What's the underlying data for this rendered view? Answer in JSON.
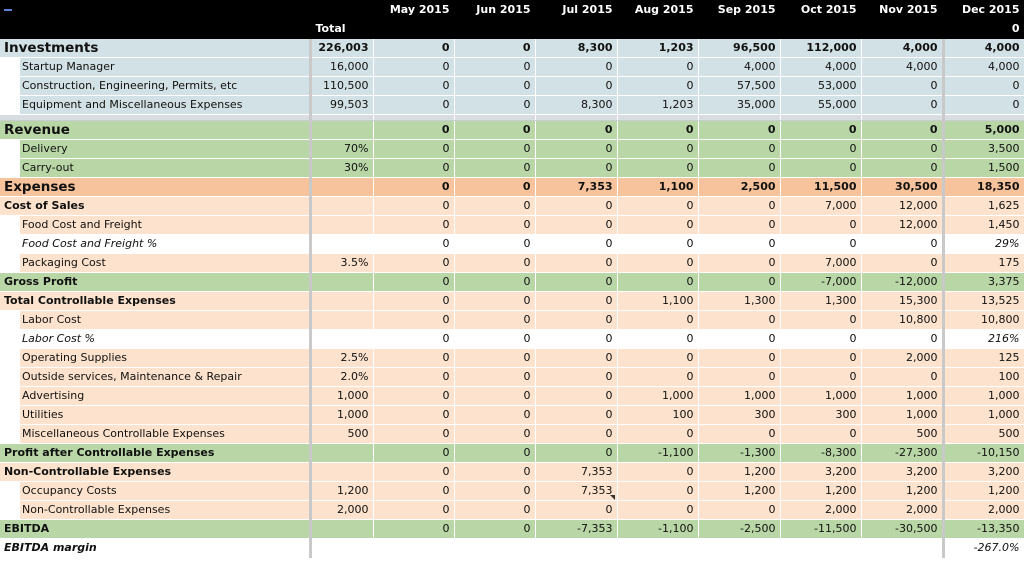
{
  "header": {
    "corner_icon": "cell-selector-icon",
    "months": [
      "May 2015",
      "Jun 2015",
      "Jul 2015",
      "Aug 2015",
      "Sep 2015",
      "Oct 2015",
      "Nov 2015",
      "Dec 2015"
    ],
    "total_label": "Total",
    "total_last": "0"
  },
  "colors": {
    "investment": "#d2e1e5",
    "revenue": "#b9d7a6",
    "expense_head": "#f7c39d",
    "expense": "#fde3cd"
  },
  "rows": [
    {
      "key": "investments",
      "style": "blue",
      "type": "sec",
      "label": "Investments",
      "total": "226,003",
      "vals": [
        "0",
        "0",
        "8,300",
        "1,203",
        "96,500",
        "112,000",
        "4,000",
        "4,000"
      ]
    },
    {
      "key": "startup-manager",
      "style": "blue",
      "type": "child",
      "label": "Startup Manager",
      "total": "16,000",
      "vals": [
        "0",
        "0",
        "0",
        "0",
        "4,000",
        "4,000",
        "4,000",
        "4,000"
      ]
    },
    {
      "key": "construction",
      "style": "blue",
      "type": "child",
      "label": "Construction, Engineering, Permits, etc",
      "total": "110,500",
      "vals": [
        "0",
        "0",
        "0",
        "0",
        "57,500",
        "53,000",
        "0",
        "0"
      ]
    },
    {
      "key": "equipment",
      "style": "blue",
      "type": "child",
      "label": "Equipment and Miscellaneous Expenses",
      "total": "99,503",
      "vals": [
        "0",
        "0",
        "8,300",
        "1,203",
        "35,000",
        "55,000",
        "0",
        "0"
      ]
    },
    {
      "key": "spacer",
      "style": "spacer",
      "type": "spacer"
    },
    {
      "key": "revenue",
      "style": "green",
      "type": "sec",
      "label": "Revenue",
      "total": "",
      "vals": [
        "0",
        "0",
        "0",
        "0",
        "0",
        "0",
        "0",
        "5,000"
      ]
    },
    {
      "key": "delivery",
      "style": "green",
      "type": "child",
      "label": "Delivery",
      "total": "70%",
      "vals": [
        "0",
        "0",
        "0",
        "0",
        "0",
        "0",
        "0",
        "3,500"
      ]
    },
    {
      "key": "carry-out",
      "style": "green",
      "type": "child",
      "label": "Carry-out",
      "total": "30%",
      "vals": [
        "0",
        "0",
        "0",
        "0",
        "0",
        "0",
        "0",
        "1,500"
      ]
    },
    {
      "key": "expenses",
      "style": "orange-head",
      "type": "sec",
      "label": "Expenses",
      "total": "",
      "vals": [
        "0",
        "0",
        "7,353",
        "1,100",
        "2,500",
        "11,500",
        "30,500",
        "18,350"
      ]
    },
    {
      "key": "cost-of-sales",
      "style": "orange",
      "type": "sub",
      "label": "Cost of Sales",
      "total": "",
      "vals": [
        "0",
        "0",
        "0",
        "0",
        "0",
        "7,000",
        "12,000",
        "1,625"
      ],
      "bold": true
    },
    {
      "key": "food-cost",
      "style": "orange",
      "type": "child",
      "label": "Food Cost and Freight",
      "total": "",
      "vals": [
        "0",
        "0",
        "0",
        "0",
        "0",
        "0",
        "12,000",
        "1,450"
      ]
    },
    {
      "key": "food-cost-pct",
      "style": "white",
      "type": "child",
      "label": "Food Cost and Freight %",
      "total": "",
      "vals": [
        "0",
        "0",
        "0",
        "0",
        "0",
        "0",
        "0",
        "29%"
      ],
      "italic": true
    },
    {
      "key": "packaging",
      "style": "orange",
      "type": "child",
      "label": "Packaging Cost",
      "total": "3.5%",
      "vals": [
        "0",
        "0",
        "0",
        "0",
        "0",
        "7,000",
        "0",
        "175"
      ]
    },
    {
      "key": "gross-profit",
      "style": "green",
      "type": "sub",
      "label": "Gross Profit",
      "total": "",
      "vals": [
        "0",
        "0",
        "0",
        "0",
        "0",
        "-7,000",
        "-12,000",
        "3,375"
      ],
      "bold": true
    },
    {
      "key": "total-controllable",
      "style": "orange",
      "type": "sub",
      "label": "Total Controllable Expenses",
      "total": "",
      "vals": [
        "0",
        "0",
        "0",
        "1,100",
        "1,300",
        "1,300",
        "15,300",
        "13,525"
      ],
      "bold": true
    },
    {
      "key": "labor-cost",
      "style": "orange",
      "type": "child",
      "label": "Labor Cost",
      "total": "",
      "vals": [
        "0",
        "0",
        "0",
        "0",
        "0",
        "0",
        "10,800",
        "10,800"
      ]
    },
    {
      "key": "labor-cost-pct",
      "style": "white",
      "type": "child",
      "label": "Labor Cost %",
      "total": "",
      "vals": [
        "0",
        "0",
        "0",
        "0",
        "0",
        "0",
        "0",
        "216%"
      ],
      "italic": true
    },
    {
      "key": "operating-supplies",
      "style": "orange",
      "type": "child",
      "label": "Operating Supplies",
      "total": "2.5%",
      "vals": [
        "0",
        "0",
        "0",
        "0",
        "0",
        "0",
        "2,000",
        "125"
      ]
    },
    {
      "key": "outside-services",
      "style": "orange",
      "type": "child",
      "label": "Outside services, Maintenance & Repair",
      "total": "2.0%",
      "vals": [
        "0",
        "0",
        "0",
        "0",
        "0",
        "0",
        "0",
        "100"
      ]
    },
    {
      "key": "advertising",
      "style": "orange",
      "type": "child",
      "label": "Advertising",
      "total": "1,000",
      "vals": [
        "0",
        "0",
        "0",
        "1,000",
        "1,000",
        "1,000",
        "1,000",
        "1,000"
      ]
    },
    {
      "key": "utilities",
      "style": "orange",
      "type": "child",
      "label": "Utilities",
      "total": "1,000",
      "vals": [
        "0",
        "0",
        "0",
        "100",
        "300",
        "300",
        "1,000",
        "1,000"
      ]
    },
    {
      "key": "misc-controllable",
      "style": "orange",
      "type": "child",
      "label": "Miscellaneous Controllable Expenses",
      "total": "500",
      "vals": [
        "0",
        "0",
        "0",
        "0",
        "0",
        "0",
        "500",
        "500"
      ]
    },
    {
      "key": "profit-after-controllable",
      "style": "green",
      "type": "sub",
      "label": "Profit after Controllable Expenses",
      "total": "",
      "vals": [
        "0",
        "0",
        "0",
        "-1,100",
        "-1,300",
        "-8,300",
        "-27,300",
        "-10,150"
      ],
      "bold": true
    },
    {
      "key": "non-controllable",
      "style": "orange",
      "type": "sub",
      "label": "Non-Controllable Expenses",
      "total": "",
      "vals": [
        "0",
        "0",
        "7,353",
        "0",
        "1,200",
        "3,200",
        "3,200",
        "3,200"
      ],
      "bold": true
    },
    {
      "key": "occupancy",
      "style": "orange",
      "type": "child",
      "label": "Occupancy Costs",
      "total": "1,200",
      "vals": [
        "0",
        "0",
        "7,353",
        "0",
        "1,200",
        "1,200",
        "1,200",
        "1,200"
      ]
    },
    {
      "key": "non-controllable-detail",
      "style": "orange",
      "type": "child",
      "label": "Non-Controllable Expenses",
      "total": "2,000",
      "vals": [
        "0",
        "0",
        "0",
        "0",
        "0",
        "2,000",
        "2,000",
        "2,000"
      ]
    },
    {
      "key": "ebitda",
      "style": "green",
      "type": "sub",
      "label": "EBITDA",
      "total": "",
      "vals": [
        "0",
        "0",
        "-7,353",
        "-1,100",
        "-2,500",
        "-11,500",
        "-30,500",
        "-13,350"
      ],
      "bold": true
    },
    {
      "key": "ebitda-margin",
      "style": "white",
      "type": "sub",
      "label": "EBITDA margin",
      "total": "",
      "vals": [
        "",
        "",
        "",
        "",
        "",
        "",
        "",
        "-267.0%"
      ],
      "bold": true,
      "italic": true
    }
  ]
}
